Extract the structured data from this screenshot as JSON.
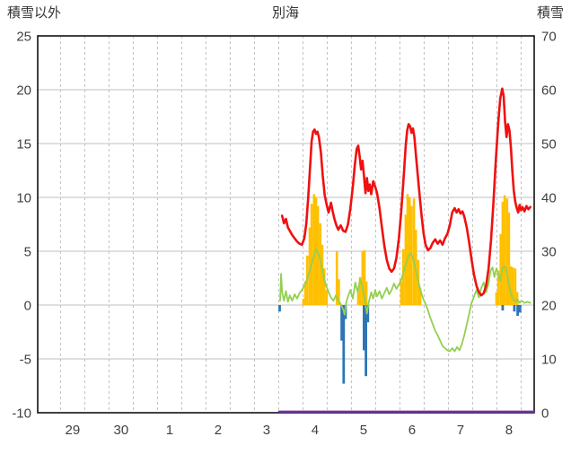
{
  "header": {
    "left": "積雪以外",
    "center": "別海",
    "right": "積雪"
  },
  "chart_data": {
    "type": "line",
    "title": "別海",
    "grid_color": "#bfbfbf",
    "frame_color": "#000000",
    "axes": {
      "left": {
        "title": "積雪以外",
        "min": -10,
        "max": 25,
        "ticks": [
          -10,
          -5,
          0,
          5,
          10,
          15,
          20,
          25
        ]
      },
      "right": {
        "title": "積雪",
        "min": 0,
        "max": 70,
        "ticks": [
          0,
          10,
          20,
          30,
          40,
          50,
          60,
          70
        ]
      },
      "x": {
        "labels": [
          "29",
          "30",
          "1",
          "2",
          "3",
          "4",
          "5",
          "6",
          "7",
          "8"
        ],
        "first_label_pos": 0.72,
        "label_step": 1,
        "domain_min": 0,
        "domain_max": 10.24,
        "grid_offset": 0.47,
        "grid_step": 0.5
      }
    },
    "series": [
      {
        "name": "orange-bars",
        "type": "bars",
        "color": "#ffc000",
        "bar_width": 2.6,
        "axis": "left",
        "points": [
          [
            5.48,
            0.6
          ],
          [
            5.52,
            2.2
          ],
          [
            5.56,
            4.6
          ],
          [
            5.61,
            7.2
          ],
          [
            5.65,
            9.4
          ],
          [
            5.7,
            10.3
          ],
          [
            5.74,
            10.0
          ],
          [
            5.78,
            9.2
          ],
          [
            5.83,
            7.6
          ],
          [
            5.87,
            5.6
          ],
          [
            5.91,
            3.4
          ],
          [
            5.96,
            1.4
          ],
          [
            6.17,
            5.0
          ],
          [
            6.21,
            2.4
          ],
          [
            6.61,
            1.2
          ],
          [
            6.65,
            2.6
          ],
          [
            6.7,
            5.0
          ],
          [
            6.74,
            5.1
          ],
          [
            6.78,
            2.2
          ],
          [
            7.5,
            2.2
          ],
          [
            7.54,
            5.2
          ],
          [
            7.59,
            8.4
          ],
          [
            7.63,
            10.3
          ],
          [
            7.67,
            10.0
          ],
          [
            7.71,
            9.2
          ],
          [
            7.76,
            9.9
          ],
          [
            7.8,
            7.0
          ],
          [
            7.85,
            4.2
          ],
          [
            7.89,
            1.6
          ],
          [
            9.46,
            1.2
          ],
          [
            9.5,
            3.2
          ],
          [
            9.55,
            6.6
          ],
          [
            9.59,
            9.6
          ],
          [
            9.63,
            10.2
          ],
          [
            9.68,
            9.9
          ],
          [
            9.72,
            8.6
          ],
          [
            9.76,
            3.6
          ],
          [
            9.8,
            3.5
          ],
          [
            9.85,
            3.4
          ],
          [
            9.89,
            1.2
          ]
        ]
      },
      {
        "name": "blue-bars",
        "type": "bars",
        "color": "#2e75b6",
        "bar_width": 2.8,
        "axis": "left",
        "points": [
          [
            4.99,
            -0.6
          ],
          [
            6.27,
            -3.3
          ],
          [
            6.31,
            -7.3
          ],
          [
            6.35,
            -1.3
          ],
          [
            6.73,
            -4.2
          ],
          [
            6.77,
            -6.6
          ],
          [
            6.81,
            -1.6
          ],
          [
            9.59,
            -0.5
          ],
          [
            9.83,
            -0.6
          ],
          [
            9.9,
            -1.0
          ],
          [
            9.95,
            -0.7
          ]
        ]
      },
      {
        "name": "purple-line",
        "type": "line",
        "color": "#7030a0",
        "width": 2.4,
        "axis": "right",
        "points": [
          [
            4.98,
            0.2
          ],
          [
            10.24,
            0.2
          ]
        ]
      },
      {
        "name": "green-line",
        "type": "line",
        "color": "#92d050",
        "width": 1.8,
        "axis": "left",
        "points": [
          [
            5.0,
            0.4
          ],
          [
            5.02,
            2.9
          ],
          [
            5.04,
            1.2
          ],
          [
            5.08,
            0.4
          ],
          [
            5.12,
            1.3
          ],
          [
            5.16,
            0.3
          ],
          [
            5.2,
            0.9
          ],
          [
            5.25,
            0.4
          ],
          [
            5.3,
            1.0
          ],
          [
            5.35,
            0.6
          ],
          [
            5.4,
            1.1
          ],
          [
            5.45,
            1.4
          ],
          [
            5.5,
            1.8
          ],
          [
            5.55,
            2.3
          ],
          [
            5.6,
            3.0
          ],
          [
            5.65,
            3.8
          ],
          [
            5.7,
            4.6
          ],
          [
            5.74,
            5.2
          ],
          [
            5.78,
            4.9
          ],
          [
            5.82,
            4.3
          ],
          [
            5.86,
            3.5
          ],
          [
            5.9,
            2.6
          ],
          [
            5.95,
            1.8
          ],
          [
            6.0,
            1.2
          ],
          [
            6.05,
            0.7
          ],
          [
            6.1,
            0.4
          ],
          [
            6.15,
            0.9
          ],
          [
            6.2,
            0.4
          ],
          [
            6.25,
            0.1
          ],
          [
            6.3,
            -0.4
          ],
          [
            6.33,
            -0.9
          ],
          [
            6.36,
            0.2
          ],
          [
            6.4,
            0.8
          ],
          [
            6.45,
            1.4
          ],
          [
            6.5,
            0.6
          ],
          [
            6.55,
            2.1
          ],
          [
            6.6,
            1.2
          ],
          [
            6.65,
            2.4
          ],
          [
            6.7,
            1.6
          ],
          [
            6.75,
            0.4
          ],
          [
            6.79,
            -0.8
          ],
          [
            6.83,
            0.3
          ],
          [
            6.88,
            1.2
          ],
          [
            6.92,
            0.6
          ],
          [
            6.96,
            1.4
          ],
          [
            7.0,
            0.8
          ],
          [
            7.05,
            1.3
          ],
          [
            7.1,
            0.6
          ],
          [
            7.15,
            1.1
          ],
          [
            7.2,
            1.6
          ],
          [
            7.25,
            1.0
          ],
          [
            7.3,
            1.4
          ],
          [
            7.35,
            2.0
          ],
          [
            7.4,
            1.5
          ],
          [
            7.45,
            1.9
          ],
          [
            7.5,
            2.4
          ],
          [
            7.55,
            3.1
          ],
          [
            7.6,
            3.9
          ],
          [
            7.65,
            4.6
          ],
          [
            7.7,
            4.8
          ],
          [
            7.74,
            4.4
          ],
          [
            7.78,
            3.6
          ],
          [
            7.82,
            2.8
          ],
          [
            7.86,
            2.0
          ],
          [
            7.9,
            1.3
          ],
          [
            7.95,
            0.6
          ],
          [
            8.0,
            0.1
          ],
          [
            8.05,
            -0.5
          ],
          [
            8.1,
            -1.2
          ],
          [
            8.15,
            -1.8
          ],
          [
            8.2,
            -2.4
          ],
          [
            8.25,
            -2.8
          ],
          [
            8.3,
            -3.3
          ],
          [
            8.35,
            -3.8
          ],
          [
            8.4,
            -4.0
          ],
          [
            8.45,
            -4.2
          ],
          [
            8.5,
            -4.3
          ],
          [
            8.55,
            -4.0
          ],
          [
            8.6,
            -4.3
          ],
          [
            8.65,
            -3.9
          ],
          [
            8.7,
            -4.2
          ],
          [
            8.75,
            -3.6
          ],
          [
            8.8,
            -2.8
          ],
          [
            8.85,
            -1.8
          ],
          [
            8.9,
            -0.8
          ],
          [
            8.95,
            0.2
          ],
          [
            9.0,
            0.8
          ],
          [
            9.05,
            1.4
          ],
          [
            9.1,
            0.7
          ],
          [
            9.15,
            1.6
          ],
          [
            9.2,
            2.1
          ],
          [
            9.25,
            1.2
          ],
          [
            9.3,
            2.0
          ],
          [
            9.34,
            3.2
          ],
          [
            9.38,
            3.5
          ],
          [
            9.42,
            2.6
          ],
          [
            9.46,
            3.4
          ],
          [
            9.5,
            3.0
          ],
          [
            9.54,
            2.2
          ],
          [
            9.58,
            3.4
          ],
          [
            9.62,
            3.6
          ],
          [
            9.66,
            3.4
          ],
          [
            9.7,
            2.4
          ],
          [
            9.74,
            1.4
          ],
          [
            9.78,
            0.8
          ],
          [
            9.82,
            0.5
          ],
          [
            9.86,
            0.3
          ],
          [
            9.9,
            0.5
          ],
          [
            9.94,
            0.2
          ],
          [
            9.98,
            0.4
          ],
          [
            10.04,
            0.2
          ],
          [
            10.1,
            0.3
          ],
          [
            10.16,
            0.2
          ]
        ]
      },
      {
        "name": "red-line",
        "type": "line",
        "color": "#f01010",
        "width": 2.6,
        "axis": "left",
        "points": [
          [
            5.04,
            8.3
          ],
          [
            5.08,
            7.6
          ],
          [
            5.12,
            8.0
          ],
          [
            5.16,
            7.2
          ],
          [
            5.2,
            6.9
          ],
          [
            5.25,
            6.5
          ],
          [
            5.3,
            6.2
          ],
          [
            5.35,
            5.9
          ],
          [
            5.4,
            5.7
          ],
          [
            5.45,
            5.6
          ],
          [
            5.5,
            6.2
          ],
          [
            5.54,
            7.6
          ],
          [
            5.58,
            10.0
          ],
          [
            5.62,
            13.0
          ],
          [
            5.65,
            15.2
          ],
          [
            5.68,
            16.1
          ],
          [
            5.71,
            16.3
          ],
          [
            5.74,
            15.9
          ],
          [
            5.77,
            16.1
          ],
          [
            5.8,
            15.6
          ],
          [
            5.84,
            14.2
          ],
          [
            5.88,
            12.0
          ],
          [
            5.92,
            10.2
          ],
          [
            5.96,
            9.3
          ],
          [
            6.0,
            8.6
          ],
          [
            6.05,
            9.5
          ],
          [
            6.08,
            8.8
          ],
          [
            6.12,
            8.0
          ],
          [
            6.16,
            7.4
          ],
          [
            6.2,
            7.0
          ],
          [
            6.25,
            7.4
          ],
          [
            6.3,
            6.9
          ],
          [
            6.35,
            6.8
          ],
          [
            6.4,
            7.5
          ],
          [
            6.45,
            9.0
          ],
          [
            6.5,
            11.0
          ],
          [
            6.54,
            13.0
          ],
          [
            6.58,
            14.5
          ],
          [
            6.61,
            14.8
          ],
          [
            6.64,
            13.8
          ],
          [
            6.67,
            12.6
          ],
          [
            6.7,
            13.4
          ],
          [
            6.73,
            12.0
          ],
          [
            6.76,
            10.4
          ],
          [
            6.79,
            11.8
          ],
          [
            6.82,
            10.6
          ],
          [
            6.85,
            11.2
          ],
          [
            6.88,
            10.3
          ],
          [
            6.92,
            11.5
          ],
          [
            6.96,
            11.0
          ],
          [
            7.0,
            10.4
          ],
          [
            7.05,
            9.0
          ],
          [
            7.1,
            7.2
          ],
          [
            7.15,
            5.5
          ],
          [
            7.2,
            4.2
          ],
          [
            7.25,
            3.4
          ],
          [
            7.3,
            3.1
          ],
          [
            7.35,
            3.4
          ],
          [
            7.4,
            4.4
          ],
          [
            7.45,
            6.2
          ],
          [
            7.5,
            8.8
          ],
          [
            7.55,
            12.0
          ],
          [
            7.59,
            14.8
          ],
          [
            7.62,
            16.2
          ],
          [
            7.65,
            16.8
          ],
          [
            7.68,
            16.6
          ],
          [
            7.71,
            16.0
          ],
          [
            7.74,
            16.4
          ],
          [
            7.77,
            15.6
          ],
          [
            7.8,
            14.0
          ],
          [
            7.84,
            12.0
          ],
          [
            7.88,
            10.0
          ],
          [
            7.92,
            8.2
          ],
          [
            7.96,
            6.6
          ],
          [
            8.0,
            5.6
          ],
          [
            8.05,
            5.1
          ],
          [
            8.1,
            5.3
          ],
          [
            8.15,
            5.8
          ],
          [
            8.2,
            6.1
          ],
          [
            8.25,
            5.7
          ],
          [
            8.3,
            6.0
          ],
          [
            8.35,
            5.6
          ],
          [
            8.4,
            6.2
          ],
          [
            8.45,
            6.6
          ],
          [
            8.5,
            7.4
          ],
          [
            8.55,
            8.6
          ],
          [
            8.6,
            9.0
          ],
          [
            8.64,
            8.6
          ],
          [
            8.68,
            8.9
          ],
          [
            8.72,
            8.5
          ],
          [
            8.76,
            8.7
          ],
          [
            8.8,
            8.2
          ],
          [
            8.85,
            7.2
          ],
          [
            8.9,
            5.8
          ],
          [
            8.95,
            4.2
          ],
          [
            9.0,
            2.8
          ],
          [
            9.05,
            1.8
          ],
          [
            9.1,
            1.2
          ],
          [
            9.15,
            0.9
          ],
          [
            9.2,
            1.1
          ],
          [
            9.25,
            1.8
          ],
          [
            9.3,
            3.4
          ],
          [
            9.35,
            6.0
          ],
          [
            9.4,
            9.5
          ],
          [
            9.45,
            13.5
          ],
          [
            9.5,
            17.0
          ],
          [
            9.54,
            19.2
          ],
          [
            9.58,
            20.1
          ],
          [
            9.61,
            19.4
          ],
          [
            9.64,
            17.0
          ],
          [
            9.67,
            15.6
          ],
          [
            9.7,
            16.8
          ],
          [
            9.73,
            16.2
          ],
          [
            9.76,
            14.6
          ],
          [
            9.79,
            12.4
          ],
          [
            9.82,
            10.6
          ],
          [
            9.85,
            9.6
          ],
          [
            9.88,
            9.0
          ],
          [
            9.91,
            8.6
          ],
          [
            9.94,
            9.3
          ],
          [
            9.97,
            8.8
          ],
          [
            10.0,
            9.1
          ],
          [
            10.04,
            8.7
          ],
          [
            10.08,
            9.2
          ],
          [
            10.12,
            8.9
          ],
          [
            10.16,
            9.1
          ]
        ]
      }
    ]
  }
}
